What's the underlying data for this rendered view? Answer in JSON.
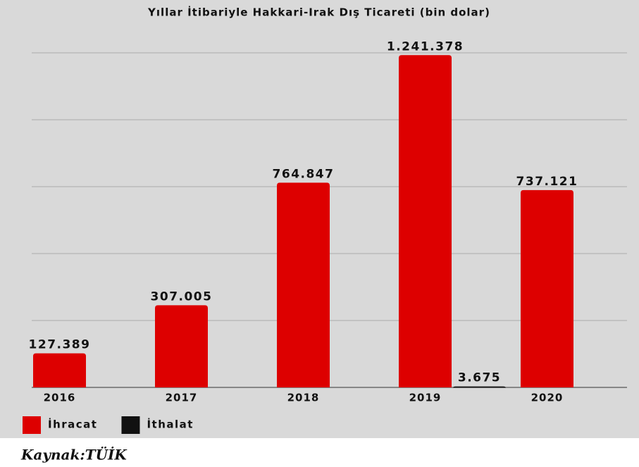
{
  "chart_data": {
    "type": "bar",
    "title": "Yıllar İtibariyle Hakkari-Irak Dış Ticareti (bin dolar)",
    "categories": [
      "2016",
      "2017",
      "2018",
      "2019",
      "2020"
    ],
    "series": [
      {
        "name": "İhracat",
        "color": "#dd0000",
        "values": [
          127389,
          307005,
          764847,
          1241378,
          737121
        ],
        "value_labels": [
          "127.389",
          "307.005",
          "764.847",
          "1.241.378",
          "737.121"
        ]
      },
      {
        "name": "İthalat",
        "color": "#111111",
        "values": [
          null,
          null,
          null,
          3675,
          null
        ],
        "value_labels": [
          null,
          null,
          null,
          "3.675",
          null
        ]
      }
    ],
    "ylim": [
      0,
      1250000
    ],
    "yticks": [
      0,
      250000,
      500000,
      750000,
      1000000,
      1250000
    ],
    "grid": true,
    "source": "Kaynak:TÜİK"
  }
}
